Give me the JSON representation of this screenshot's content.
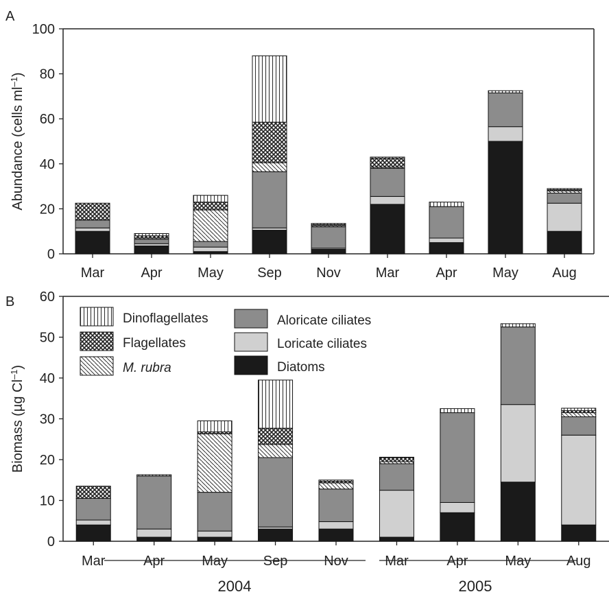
{
  "colors": {
    "diatoms": "#1a1a1a",
    "loricate": "#d0d0d0",
    "aloricate": "#8c8c8c",
    "m_rubra": "diagonal-hatch",
    "flagellates": "crosshatch",
    "dinoflagellates": "vertical-lines"
  },
  "year_labels": [
    "2004",
    "2005"
  ],
  "chart_data": [
    {
      "panel": "A",
      "type": "bar",
      "stacked": true,
      "ylabel": "Abundance (cells ml",
      "ylabel_sup": "–1",
      "ylabel_end": ")",
      "ylim": [
        0,
        100
      ],
      "yticks": [
        0,
        20,
        40,
        60,
        80,
        100
      ],
      "categories": [
        "Mar",
        "Apr",
        "May",
        "Sep",
        "Nov",
        "Mar",
        "Apr",
        "May",
        "Aug"
      ],
      "series": [
        {
          "name": "Diatoms",
          "key": "diatoms",
          "values": [
            10,
            3.5,
            1,
            10.5,
            2,
            22,
            5,
            50,
            10
          ]
        },
        {
          "name": "Loricate ciliates",
          "key": "loricate",
          "values": [
            1.5,
            1,
            2,
            1,
            0.5,
            3.5,
            2,
            6.5,
            12.5
          ]
        },
        {
          "name": "Aloricate ciliates",
          "key": "aloricate",
          "values": [
            3.5,
            2,
            2.5,
            25,
            9.5,
            12.5,
            14,
            15,
            4.5
          ]
        },
        {
          "name": "M. rubra",
          "key": "m_rubra",
          "values": [
            0,
            0.5,
            14,
            4,
            0.5,
            0.5,
            0,
            0,
            1
          ]
        },
        {
          "name": "Flagellates",
          "key": "flagellates",
          "values": [
            7.5,
            1,
            3.5,
            18,
            0.5,
            4,
            0,
            0,
            0.5
          ]
        },
        {
          "name": "Dinoflagellates",
          "key": "dinoflagellates",
          "values": [
            0,
            1,
            3,
            29.5,
            0.5,
            0.5,
            2,
            1,
            0.5
          ]
        }
      ]
    },
    {
      "panel": "B",
      "type": "bar",
      "stacked": true,
      "ylabel": "Biomass (µg Cl",
      "ylabel_sup": "–1",
      "ylabel_end": ")",
      "ylim": [
        0,
        60
      ],
      "yticks": [
        0,
        10,
        20,
        30,
        40,
        50,
        60
      ],
      "categories": [
        "Mar",
        "Apr",
        "May",
        "Sep",
        "Nov",
        "Mar",
        "Apr",
        "May",
        "Aug"
      ],
      "series": [
        {
          "name": "Diatoms",
          "key": "diatoms",
          "values": [
            4,
            1,
            1,
            3,
            3,
            1,
            7,
            14.5,
            4
          ]
        },
        {
          "name": "Loricate ciliates",
          "key": "loricate",
          "values": [
            1.2,
            2,
            1.5,
            0.5,
            1.8,
            11.5,
            2.5,
            19,
            22
          ]
        },
        {
          "name": "Aloricate ciliates",
          "key": "aloricate",
          "values": [
            5.3,
            13,
            9.5,
            17,
            8,
            6.5,
            22,
            19,
            4.5
          ]
        },
        {
          "name": "M. rubra",
          "key": "m_rubra",
          "values": [
            0,
            0,
            14.3,
            3.2,
            1.5,
            0.5,
            0,
            0,
            1
          ]
        },
        {
          "name": "Flagellates",
          "key": "flagellates",
          "values": [
            3,
            0,
            0.5,
            4,
            0.4,
            1,
            0,
            0,
            0.5
          ]
        },
        {
          "name": "Dinoflagellates",
          "key": "dinoflagellates",
          "values": [
            0,
            0.3,
            2.7,
            11.8,
            0.3,
            0.1,
            1,
            0.8,
            0.6
          ]
        }
      ]
    }
  ],
  "panel_labels": [
    "A",
    "B"
  ],
  "legend": [
    {
      "key": "dinoflagellates",
      "label": "Dinoflagellates"
    },
    {
      "key": "flagellates",
      "label": "Flagellates"
    },
    {
      "key": "m_rubra",
      "label": "M. rubra",
      "italic": true
    },
    {
      "key": "aloricate",
      "label": "Aloricate ciliates"
    },
    {
      "key": "loricate",
      "label": "Loricate ciliates"
    },
    {
      "key": "diatoms",
      "label": "Diatoms"
    }
  ]
}
